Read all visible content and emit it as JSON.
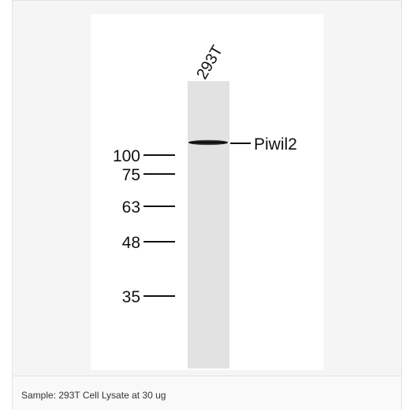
{
  "lane_label": "293T",
  "band_label": "Piwil2",
  "markers": [
    "100",
    "75",
    "63",
    "48",
    "35"
  ],
  "caption": "Sample: 293T Cell Lysate at 30 ug"
}
